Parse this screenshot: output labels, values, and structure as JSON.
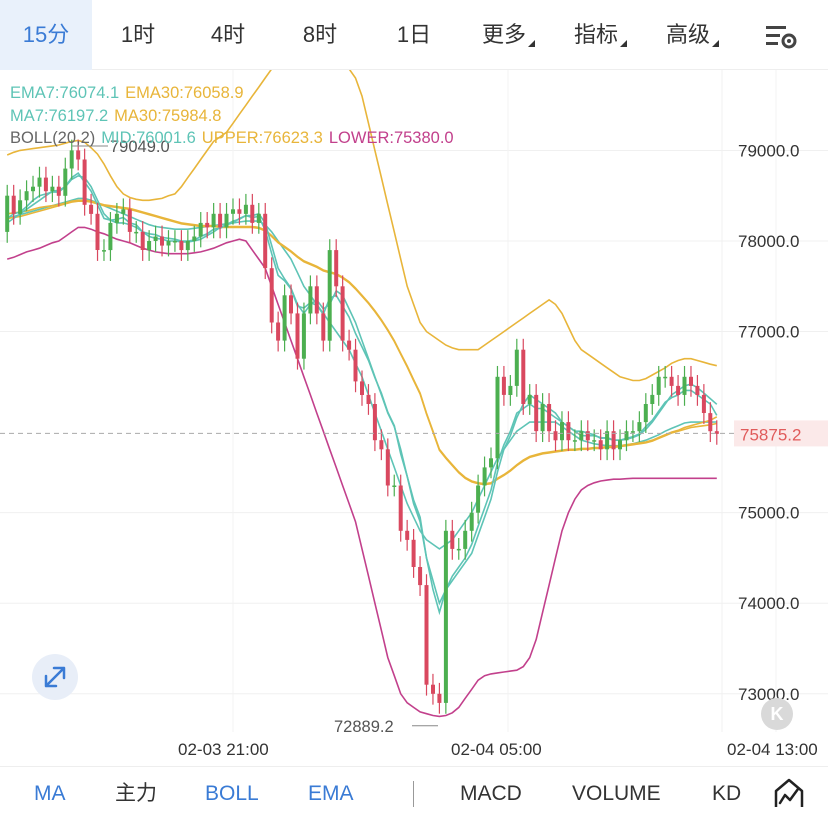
{
  "toolbar": {
    "timeframes": [
      "15分",
      "1时",
      "4时",
      "8时",
      "1日"
    ],
    "active_timeframe": "15分",
    "more_label": "更多",
    "indicators_label": "指标",
    "advanced_label": "高级",
    "settings_icon": "chart-settings-icon"
  },
  "legend": {
    "ema7": "EMA7:76074.1",
    "ema30": "EMA30:76058.9",
    "ma7": "MA7:76197.2",
    "ma30": "MA30:75984.8",
    "boll": "BOLL(20,2)",
    "mid": "MID:76001.6",
    "upper": "UPPER:76623.3",
    "lower": "LOWER:75380.0"
  },
  "colors": {
    "up": "#4caf50",
    "down": "#d9485f",
    "ema7": "#5ec4b6",
    "ema30": "#e8b53a",
    "ma7": "#5ec4b6",
    "ma30": "#e8b53a",
    "boll_mid": "#5ec4b6",
    "boll_upper": "#e8b53a",
    "boll_lower": "#c2408c",
    "current_price": "#e05b5b",
    "accent": "#3a7bd5"
  },
  "price_axis": {
    "labels": [
      "79000.0",
      "78000.0",
      "77000.0",
      "75000.0",
      "74000.0",
      "73000.0"
    ],
    "current_price": "75875.2",
    "high_marker": "79049.0",
    "low_marker": "72889.2"
  },
  "chart_data": {
    "type": "candlestick",
    "ylim": [
      72600,
      79800
    ],
    "open": [
      78100,
      78500,
      78300,
      78450,
      78550,
      78600,
      78700,
      78550,
      78600,
      78500,
      78800,
      79000,
      78900,
      78400,
      78300,
      77900,
      77900,
      78200,
      78300,
      78350,
      78100,
      78100,
      77900,
      78000,
      78050,
      77950,
      78000,
      78000,
      77900,
      78000,
      78050,
      78200,
      78150,
      78300,
      78150,
      78300,
      78350,
      78300,
      78400,
      78200,
      78300,
      77700,
      77100,
      76900,
      77400,
      77200,
      76700,
      77200,
      77500,
      77200,
      76900,
      77900,
      77500,
      76900,
      76800,
      76450,
      76300,
      76200,
      75800,
      75700,
      75300,
      75300,
      74800,
      74700,
      74400,
      74200,
      73100,
      73000,
      72900,
      74800,
      74600,
      74600,
      74800,
      75000,
      75300,
      75500,
      75600,
      76500,
      76300,
      76400,
      76800,
      76200,
      76300,
      75900,
      76200,
      75900,
      75800,
      76000,
      75800,
      75800,
      75900,
      75800,
      75800,
      75700,
      75900,
      75700,
      75800,
      75900,
      75900,
      76000,
      76200,
      76300,
      76500,
      76500,
      76400,
      76300,
      76500,
      76400,
      76300,
      76100,
      75900
    ],
    "close": [
      78500,
      78300,
      78450,
      78550,
      78600,
      78700,
      78550,
      78600,
      78500,
      78800,
      79000,
      78900,
      78400,
      78300,
      77900,
      77900,
      78200,
      78300,
      78350,
      78100,
      78100,
      77900,
      78000,
      78050,
      77950,
      78000,
      78000,
      77900,
      78000,
      78050,
      78200,
      78150,
      78300,
      78150,
      78300,
      78350,
      78300,
      78400,
      78200,
      78300,
      77700,
      77100,
      76900,
      77400,
      77200,
      76700,
      77200,
      77500,
      77200,
      76900,
      77900,
      77500,
      76900,
      76800,
      76450,
      76300,
      76200,
      75800,
      75700,
      75300,
      75300,
      74800,
      74700,
      74400,
      74200,
      73100,
      73000,
      72900,
      74800,
      74600,
      74600,
      74800,
      75000,
      75300,
      75500,
      75600,
      76500,
      76300,
      76400,
      76800,
      76200,
      76300,
      75900,
      76200,
      75900,
      75800,
      76000,
      75800,
      75800,
      75900,
      75800,
      75800,
      75700,
      75900,
      75700,
      75800,
      75900,
      75900,
      76000,
      76200,
      76300,
      76500,
      76500,
      76400,
      76300,
      76500,
      76400,
      76300,
      76100,
      75900,
      75870
    ],
    "ema7": [
      78250,
      78300,
      78320,
      78380,
      78450,
      78500,
      78520,
      78540,
      78540,
      78600,
      78700,
      78750,
      78650,
      78550,
      78400,
      78250,
      78230,
      78240,
      78260,
      78200,
      78180,
      78100,
      78080,
      78070,
      78040,
      78030,
      78020,
      78000,
      78000,
      78010,
      78050,
      78080,
      78130,
      78140,
      78180,
      78220,
      78240,
      78280,
      78260,
      78270,
      78120,
      77860,
      77620,
      77560,
      77470,
      77280,
      77260,
      77320,
      77290,
      77190,
      77370,
      77400,
      77280,
      77160,
      76980,
      76830,
      76680,
      76490,
      76320,
      76110,
      75960,
      75650,
      75400,
      75140,
      74950,
      74500,
      74150,
      73900,
      74150,
      74300,
      74400,
      74500,
      74650,
      74850,
      75050,
      75250,
      75550,
      75750,
      75900,
      76100,
      76150,
      76200,
      76150,
      76150,
      76100,
      76050,
      76000,
      75950,
      75900,
      75900,
      75880,
      75860,
      75820,
      75830,
      75800,
      75800,
      75820,
      75840,
      75870,
      75950,
      76020,
      76120,
      76220,
      76270,
      76300,
      76350,
      76350,
      76300,
      76250,
      76200,
      76074
    ],
    "ema30": [
      78300,
      78310,
      78320,
      78330,
      78350,
      78370,
      78380,
      78390,
      78400,
      78420,
      78440,
      78450,
      78450,
      78440,
      78420,
      78400,
      78390,
      78380,
      78370,
      78360,
      78340,
      78320,
      78300,
      78280,
      78260,
      78240,
      78220,
      78200,
      78190,
      78180,
      78170,
      78170,
      78170,
      78160,
      78160,
      78160,
      78160,
      78160,
      78160,
      78150,
      78120,
      78060,
      77990,
      77940,
      77890,
      77830,
      77780,
      77750,
      77720,
      77680,
      77660,
      77640,
      77600,
      77550,
      77480,
      77400,
      77320,
      77230,
      77130,
      77020,
      76900,
      76760,
      76620,
      76470,
      76320,
      76100,
      75900,
      75700,
      75610,
      75530,
      75450,
      75390,
      75350,
      75330,
      75320,
      75330,
      75380,
      75420,
      75470,
      75530,
      75580,
      75620,
      75640,
      75660,
      75670,
      75680,
      75690,
      75700,
      75700,
      75710,
      75710,
      75720,
      75720,
      75730,
      75730,
      75740,
      75750,
      75760,
      75770,
      75780,
      75800,
      75830,
      75860,
      75890,
      75910,
      75940,
      75960,
      75980,
      76000,
      76020,
      76059
    ],
    "ma7": [
      78200,
      78250,
      78300,
      78350,
      78400,
      78450,
      78500,
      78550,
      78560,
      78600,
      78680,
      78720,
      78700,
      78600,
      78450,
      78300,
      78230,
      78200,
      78200,
      78180,
      78150,
      78100,
      78050,
      78030,
      78020,
      78000,
      78000,
      77990,
      77990,
      78000,
      78020,
      78060,
      78100,
      78150,
      78180,
      78200,
      78250,
      78280,
      78280,
      78300,
      78200,
      77950,
      77700,
      77580,
      77480,
      77300,
      77200,
      77300,
      77350,
      77250,
      77300,
      77450,
      77400,
      77250,
      77100,
      76900,
      76700,
      76500,
      76300,
      76100,
      75950,
      75700,
      75400,
      75100,
      74900,
      74500,
      74250,
      74000,
      74150,
      74250,
      74350,
      74450,
      74550,
      74750,
      74950,
      75150,
      75450,
      75700,
      75850,
      76050,
      76200,
      76300,
      76250,
      76200,
      76150,
      76100,
      76000,
      75950,
      75900,
      75850,
      75850,
      75850,
      75830,
      75820,
      75800,
      75800,
      75810,
      75830,
      75860,
      75920,
      76000,
      76100,
      76200,
      76300,
      76350,
      76400,
      76420,
      76380,
      76320,
      76260,
      76197
    ],
    "ma30": [
      78250,
      78260,
      78270,
      78290,
      78310,
      78330,
      78350,
      78370,
      78390,
      78410,
      78430,
      78440,
      78440,
      78430,
      78410,
      78390,
      78380,
      78370,
      78360,
      78350,
      78330,
      78310,
      78290,
      78270,
      78250,
      78230,
      78210,
      78190,
      78180,
      78170,
      78160,
      78160,
      78160,
      78150,
      78150,
      78150,
      78150,
      78150,
      78150,
      78140,
      78110,
      78050,
      77980,
      77930,
      77880,
      77820,
      77770,
      77740,
      77710,
      77670,
      77650,
      77630,
      77590,
      77540,
      77470,
      77390,
      77310,
      77220,
      77120,
      77010,
      76890,
      76750,
      76610,
      76460,
      76310,
      76090,
      75890,
      75690,
      75600,
      75520,
      75440,
      75380,
      75340,
      75320,
      75310,
      75320,
      75370,
      75410,
      75460,
      75520,
      75570,
      75610,
      75630,
      75650,
      75660,
      75670,
      75680,
      75690,
      75690,
      75700,
      75700,
      75710,
      75710,
      75720,
      75720,
      75730,
      75740,
      75750,
      75760,
      75770,
      75790,
      75820,
      75850,
      75880,
      75900,
      75920,
      75940,
      75950,
      75960,
      75970,
      75985
    ],
    "boll_upper": [
      78950,
      78980,
      79000,
      79010,
      79020,
      79030,
      79040,
      79050,
      79060,
      79080,
      79100,
      79110,
      79090,
      79030,
      78960,
      78850,
      78720,
      78600,
      78520,
      78480,
      78460,
      78450,
      78450,
      78460,
      78470,
      78500,
      78520,
      78600,
      78700,
      78800,
      78900,
      79000,
      79100,
      79150,
      79200,
      79300,
      79400,
      79500,
      79600,
      79700,
      79800,
      79900,
      79900,
      79900,
      79900,
      79900,
      79900,
      79900,
      79900,
      79900,
      79900,
      79900,
      79900,
      79900,
      79800,
      79600,
      79300,
      79000,
      78700,
      78400,
      78100,
      77800,
      77500,
      77300,
      77100,
      77000,
      76950,
      76900,
      76850,
      76820,
      76800,
      76800,
      76800,
      76800,
      76850,
      76900,
      76950,
      77000,
      77050,
      77100,
      77150,
      77200,
      77250,
      77300,
      77350,
      77300,
      77200,
      77050,
      76900,
      76800,
      76750,
      76700,
      76650,
      76600,
      76550,
      76500,
      76480,
      76460,
      76460,
      76480,
      76520,
      76560,
      76600,
      76650,
      76680,
      76700,
      76700,
      76680,
      76660,
      76640,
      76623
    ],
    "boll_mid": [
      78250,
      78270,
      78290,
      78310,
      78330,
      78350,
      78370,
      78390,
      78410,
      78430,
      78450,
      78470,
      78470,
      78450,
      78420,
      78390,
      78360,
      78330,
      78300,
      78270,
      78240,
      78210,
      78180,
      78160,
      78150,
      78140,
      78130,
      78130,
      78130,
      78140,
      78150,
      78160,
      78170,
      78180,
      78190,
      78200,
      78210,
      78220,
      78220,
      78220,
      78180,
      78100,
      78000,
      77900,
      77800,
      77650,
      77500,
      77400,
      77300,
      77200,
      77100,
      77000,
      76900,
      76800,
      76650,
      76500,
      76300,
      76100,
      75900,
      75700,
      75500,
      75300,
      75100,
      74950,
      74800,
      74700,
      74650,
      74600,
      74650,
      74700,
      74800,
      74900,
      75000,
      75150,
      75300,
      75450,
      75600,
      75700,
      75800,
      75900,
      75950,
      76000,
      76000,
      76000,
      76000,
      76000,
      75950,
      75900,
      75850,
      75800,
      75780,
      75760,
      75750,
      75740,
      75740,
      75740,
      75750,
      75760,
      75780,
      75800,
      75830,
      75860,
      75900,
      75930,
      75960,
      75990,
      76000,
      76000,
      76000,
      76000,
      76001
    ],
    "boll_lower": [
      77800,
      77820,
      77850,
      77880,
      77900,
      77920,
      77950,
      77980,
      78000,
      78050,
      78100,
      78150,
      78150,
      78130,
      78100,
      78080,
      78050,
      78020,
      78000,
      77980,
      77950,
      77920,
      77900,
      77880,
      77870,
      77860,
      77860,
      77860,
      77860,
      77870,
      77880,
      77900,
      77920,
      77950,
      77980,
      78000,
      78020,
      78000,
      77900,
      77800,
      77700,
      77500,
      77300,
      77100,
      76900,
      76700,
      76500,
      76300,
      76100,
      75900,
      75700,
      75500,
      75300,
      75100,
      74900,
      74600,
      74300,
      74000,
      73700,
      73400,
      73200,
      73000,
      72900,
      72850,
      72800,
      72780,
      72760,
      72750,
      72760,
      72790,
      72850,
      72950,
      73050,
      73150,
      73200,
      73220,
      73230,
      73240,
      73250,
      73260,
      73300,
      73400,
      73600,
      73900,
      74200,
      74500,
      74800,
      75000,
      75150,
      75250,
      75300,
      75330,
      75350,
      75360,
      75370,
      75370,
      75375,
      75380,
      75380,
      75380,
      75380,
      75380,
      75380,
      75380,
      75380,
      75380,
      75380,
      75380,
      75380,
      75380,
      75380
    ]
  },
  "time_axis": {
    "labels": [
      "02-03 21:00",
      "02-04 05:00",
      "02-04 13:00"
    ]
  },
  "bottom_tabs": {
    "main": [
      "MA",
      "主力",
      "BOLL",
      "EMA"
    ],
    "sub": [
      "MACD",
      "VOLUME",
      "KD"
    ],
    "active": [
      "MA",
      "BOLL",
      "EMA"
    ],
    "draw_icon": "drawing-tool-icon"
  },
  "badges": {
    "k": "K"
  }
}
